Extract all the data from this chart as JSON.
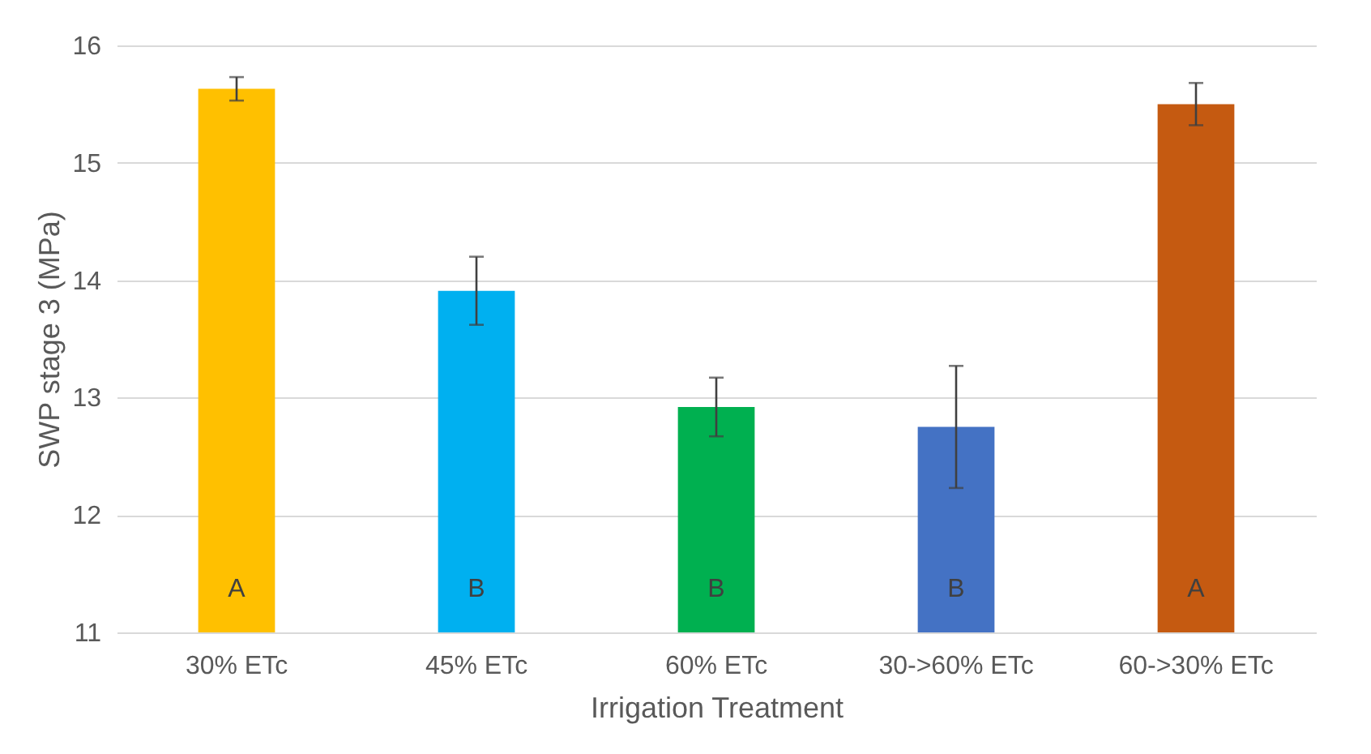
{
  "chart_data": {
    "type": "bar",
    "xlabel": "Irrigation Treatment",
    "ylabel": "SWP stage 3 (MPa)",
    "categories": [
      "30% ETc",
      "45% ETc",
      "60% ETc",
      "30->60% ETc",
      "60->30% ETc"
    ],
    "values": [
      15.63,
      13.91,
      12.92,
      12.75,
      15.5
    ],
    "colors": [
      "#ffc000",
      "#00b0f0",
      "#00b050",
      "#4472c4",
      "#c55a11"
    ],
    "errors": [
      0.1,
      0.29,
      0.25,
      0.52,
      0.18
    ],
    "ylim": [
      11,
      16
    ],
    "yticks": [
      11,
      12,
      13,
      14,
      15,
      16
    ],
    "grid": "y",
    "annotations": [
      "A",
      "B",
      "B",
      "B",
      "A"
    ]
  }
}
